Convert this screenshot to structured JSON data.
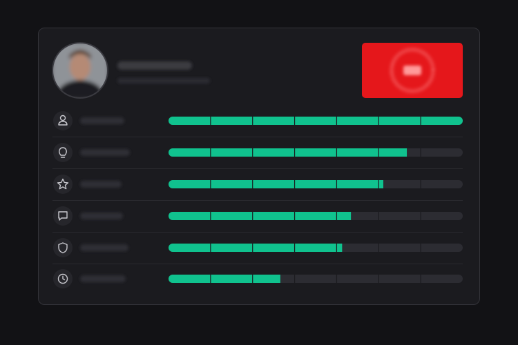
{
  "progress": {
    "values": [
      1.0,
      0.81,
      0.73,
      0.62,
      0.59,
      0.38
    ],
    "color": "#10c28e"
  }
}
